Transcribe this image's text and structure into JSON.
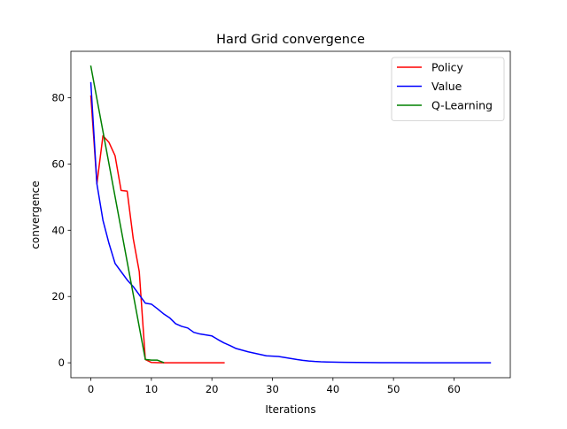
{
  "chart_data": {
    "type": "line",
    "title": "Hard Grid convergence",
    "xlabel": "Iterations",
    "ylabel": "convergence",
    "xlim": [
      -3.3,
      69.3
    ],
    "ylim": [
      -4.5,
      94.0
    ],
    "xticks": [
      0,
      10,
      20,
      30,
      40,
      50,
      60
    ],
    "yticks": [
      0,
      20,
      40,
      60,
      80
    ],
    "grid": false,
    "legend_position": "top-right",
    "series": [
      {
        "name": "Policy",
        "color": "#ff0000",
        "x": [
          0,
          1,
          2,
          3,
          4,
          5,
          6,
          7,
          8,
          9,
          10,
          11,
          12,
          13,
          14,
          15,
          16,
          17,
          18,
          19,
          20,
          21,
          22
        ],
        "y": [
          80.5,
          54.0,
          68.5,
          66.5,
          62.5,
          52.0,
          51.8,
          37.5,
          27.5,
          1.0,
          0.1,
          0.05,
          0,
          0,
          0,
          0,
          0,
          0,
          0,
          0,
          0,
          0,
          0
        ]
      },
      {
        "name": "Value",
        "color": "#0000ff",
        "x": [
          0,
          1,
          2,
          3,
          4,
          5,
          6,
          7,
          8,
          9,
          10,
          11,
          12,
          13,
          14,
          15,
          16,
          17,
          18,
          19,
          20,
          21,
          22,
          23,
          24,
          25,
          26,
          27,
          28,
          29,
          30,
          31,
          32,
          33,
          34,
          35,
          36,
          37,
          38,
          39,
          40,
          42,
          44,
          46,
          48,
          50,
          55,
          60,
          66
        ],
        "y": [
          84.5,
          54.0,
          43.0,
          36.0,
          30.0,
          27.5,
          25.0,
          23.0,
          20.5,
          18.0,
          17.7,
          16.3,
          14.8,
          13.6,
          11.8,
          11.0,
          10.5,
          9.2,
          8.7,
          8.4,
          8.1,
          7.0,
          6.0,
          5.2,
          4.3,
          3.8,
          3.3,
          2.9,
          2.5,
          2.1,
          2.0,
          1.9,
          1.6,
          1.3,
          1.0,
          0.75,
          0.55,
          0.4,
          0.3,
          0.25,
          0.2,
          0.15,
          0.1,
          0.07,
          0.05,
          0.03,
          0.02,
          0.01,
          0.01
        ]
      },
      {
        "name": "Q-Learning",
        "color": "#008000",
        "x": [
          0,
          9,
          10,
          11,
          12
        ],
        "y": [
          89.5,
          1.0,
          0.8,
          0.8,
          0.1
        ]
      }
    ]
  }
}
